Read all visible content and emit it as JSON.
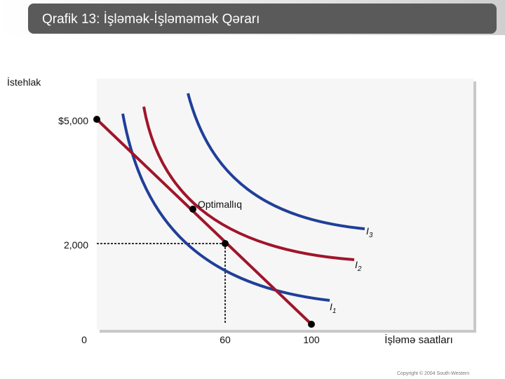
{
  "header": {
    "title": "Qrafik 13: İşləmək-İşləməmək Qərarı"
  },
  "diagram": {
    "y_axis_label": "İstehlak",
    "x_axis_label": "İşləmə saatları",
    "y_ticks": [
      "$5,000",
      "2,000",
      "0"
    ],
    "x_ticks": [
      "60",
      "100"
    ],
    "annotation": "Optimallıq",
    "curves": [
      {
        "symbol": "I",
        "subscript": "1"
      },
      {
        "symbol": "I",
        "subscript": "2"
      },
      {
        "symbol": "I",
        "subscript": "3"
      }
    ]
  },
  "footer": {
    "copyright": "Copyright © 2004 South-Western"
  }
}
